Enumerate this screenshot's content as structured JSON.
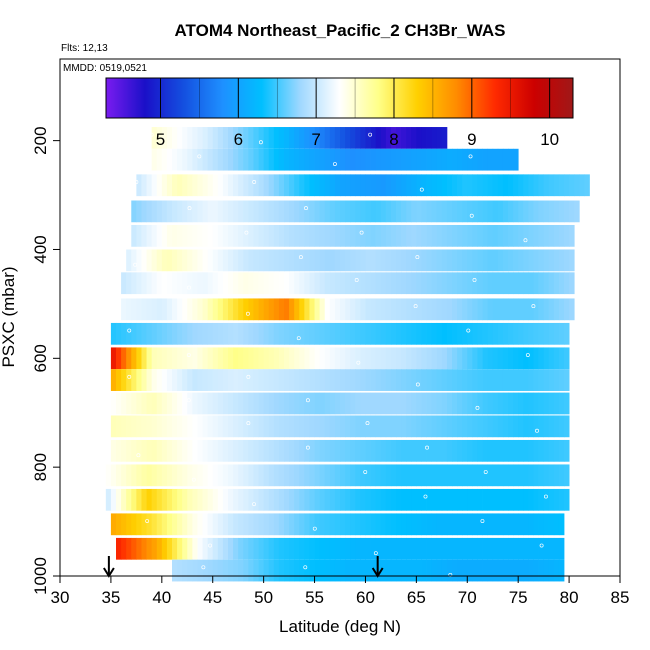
{
  "chart_data": {
    "type": "heatmap",
    "title": "ATOM4 Northeast_Pacific_2 CH3Br_WAS",
    "flights_label": "Flts: 12,13",
    "dates_label": "MMDD: 0519,0521",
    "xlabel": "Latitude (deg N)",
    "ylabel": "PSXC (mbar)",
    "xlim": [
      30,
      85
    ],
    "ylim": [
      1000,
      50
    ],
    "y_reversed": true,
    "x_ticks": [
      "30",
      "35",
      "40",
      "45",
      "50",
      "55",
      "60",
      "65",
      "70",
      "75",
      "80",
      "85"
    ],
    "y_ticks": [
      "200",
      "400",
      "600",
      "800",
      "1000"
    ],
    "colorbar": {
      "range": [
        4.3,
        10.3
      ],
      "tick_labels": [
        "5",
        "6",
        "7",
        "8",
        "9",
        "10"
      ],
      "colors": [
        "#7a1cf0",
        "#1a10c8",
        "#1450e0",
        "#1e90ff",
        "#00bfff",
        "#a0d8ff",
        "#ffffff",
        "#ffff88",
        "#ffd000",
        "#ff8c00",
        "#ff2a00",
        "#cc0000",
        "#a01818"
      ]
    },
    "flight_arrows_latitude": [
      34.8,
      61.2
    ],
    "layers": [
      {
        "p": 195,
        "lat": [
          39,
          68
        ],
        "values": [
          7.5,
          7.3,
          7.1,
          6.8,
          6.5,
          6.2,
          5.8,
          5.4,
          5.0,
          4.6,
          4.8,
          4.9
        ]
      },
      {
        "p": 235,
        "lat": [
          39,
          75
        ],
        "values": [
          7.4,
          7.2,
          6.9,
          6.6,
          6.2,
          6.0,
          5.8,
          5.9,
          6.0,
          6.1,
          6.0,
          6.0
        ]
      },
      {
        "p": 282,
        "lat": [
          37.5,
          82
        ],
        "values": [
          7.0,
          7.6,
          7.3,
          6.9,
          6.4,
          6.0,
          5.9,
          6.2,
          6.4,
          6.3,
          6.5,
          6.6
        ]
      },
      {
        "p": 330,
        "lat": [
          37,
          81
        ],
        "values": [
          6.7,
          7.0,
          7.2,
          7.0,
          6.8,
          6.6,
          6.5,
          6.7,
          6.6,
          6.5,
          6.7,
          6.8
        ]
      },
      {
        "p": 375,
        "lat": [
          37,
          80.5
        ],
        "values": [
          7.0,
          7.4,
          7.3,
          7.1,
          6.9,
          6.8,
          6.7,
          6.8,
          6.7,
          6.6,
          6.7,
          6.8
        ]
      },
      {
        "p": 420,
        "lat": [
          36.5,
          80.5
        ],
        "values": [
          7.1,
          7.6,
          7.3,
          7.0,
          6.9,
          6.8,
          6.9,
          6.8,
          6.7,
          6.6,
          6.7,
          6.8
        ]
      },
      {
        "p": 462,
        "lat": [
          36,
          80.5
        ],
        "values": [
          7.0,
          7.3,
          7.2,
          7.4,
          7.3,
          7.0,
          6.9,
          6.8,
          6.7,
          6.6,
          6.6,
          6.8
        ]
      },
      {
        "p": 510,
        "lat": [
          36,
          80.5
        ],
        "values": [
          7.2,
          7.1,
          7.5,
          8.3,
          8.9,
          7.3,
          7.0,
          6.9,
          6.8,
          6.6,
          6.6,
          6.8
        ]
      },
      {
        "p": 555,
        "lat": [
          35,
          80
        ],
        "values": [
          6.4,
          6.6,
          6.8,
          6.9,
          6.7,
          6.6,
          6.5,
          6.4,
          6.3,
          6.4,
          6.5,
          6.6
        ]
      },
      {
        "p": 600,
        "lat": [
          35,
          80
        ],
        "values": [
          9.6,
          7.6,
          7.4,
          7.8,
          7.6,
          7.3,
          7.1,
          7.0,
          6.8,
          6.4,
          6.3,
          6.5
        ]
      },
      {
        "p": 640,
        "lat": [
          35,
          80
        ],
        "values": [
          8.6,
          7.4,
          7.0,
          7.1,
          7.0,
          6.9,
          6.8,
          6.7,
          6.6,
          6.5,
          6.5,
          6.6
        ]
      },
      {
        "p": 683,
        "lat": [
          35,
          80
        ],
        "values": [
          7.3,
          7.6,
          7.2,
          7.0,
          6.8,
          6.7,
          6.8,
          6.8,
          6.7,
          6.5,
          6.4,
          6.5
        ]
      },
      {
        "p": 725,
        "lat": [
          35,
          80
        ],
        "values": [
          7.6,
          7.5,
          7.3,
          7.1,
          6.9,
          6.8,
          6.7,
          6.7,
          6.6,
          6.5,
          6.4,
          6.5
        ]
      },
      {
        "p": 770,
        "lat": [
          35,
          80
        ],
        "values": [
          7.4,
          7.6,
          7.3,
          7.1,
          6.9,
          6.7,
          6.6,
          6.5,
          6.5,
          6.4,
          6.4,
          6.5
        ]
      },
      {
        "p": 815,
        "lat": [
          34.5,
          80
        ],
        "values": [
          7.3,
          7.7,
          7.4,
          7.2,
          6.9,
          6.7,
          6.5,
          6.4,
          6.4,
          6.4,
          6.4,
          6.5
        ]
      },
      {
        "p": 860,
        "lat": [
          34.5,
          80
        ],
        "values": [
          7.0,
          8.3,
          7.6,
          7.2,
          6.9,
          6.6,
          6.4,
          6.3,
          6.3,
          6.3,
          6.3,
          6.4
        ]
      },
      {
        "p": 905,
        "lat": [
          35,
          79.5
        ],
        "values": [
          8.6,
          8.1,
          7.4,
          7.0,
          6.8,
          6.5,
          6.4,
          6.3,
          6.2,
          6.2,
          6.2,
          6.3
        ]
      },
      {
        "p": 950,
        "lat": [
          35.5,
          79.5
        ],
        "values": [
          9.4,
          8.6,
          7.3,
          6.7,
          6.4,
          6.3,
          6.2,
          6.2,
          6.2,
          6.2,
          6.2,
          6.2
        ]
      },
      {
        "p": 990,
        "lat": [
          41,
          79.5
        ],
        "values": [
          6.9,
          6.8,
          6.7,
          6.4,
          6.3,
          6.2,
          6.2,
          6.2,
          6.1,
          6.1,
          6.1,
          6.2
        ]
      }
    ]
  }
}
